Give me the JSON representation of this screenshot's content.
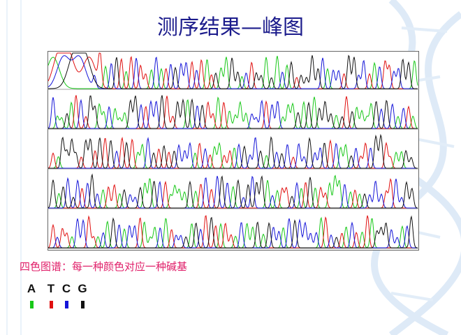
{
  "title": "测序结果—峰图",
  "caption": "四色图谱：每一种颜色对应一种碱基",
  "bases": [
    {
      "letter": "A",
      "color": "#18c818"
    },
    {
      "letter": "T",
      "color": "#e01010"
    },
    {
      "letter": "C",
      "color": "#1414d8"
    },
    {
      "letter": "G",
      "color": "#111111"
    }
  ]
}
